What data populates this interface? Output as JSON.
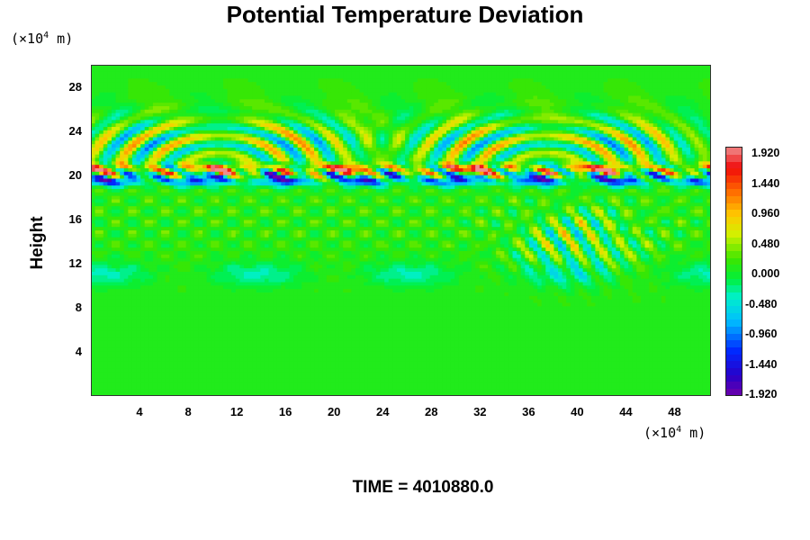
{
  "chart_data": {
    "type": "heatmap",
    "title": "Potential Temperature Deviation",
    "ylabel": "Height",
    "xunit_prefix": "(×10",
    "xunit_exp": "4",
    "xunit_suffix": " m)",
    "yunit_prefix": "(×10",
    "yunit_exp": "4",
    "yunit_suffix": " m)",
    "xlim": [
      0,
      51
    ],
    "ylim": [
      0,
      30
    ],
    "x_ticks": [
      "4",
      "8",
      "12",
      "16",
      "20",
      "24",
      "28",
      "32",
      "36",
      "40",
      "44",
      "48"
    ],
    "y_ticks": [
      "4",
      "8",
      "12",
      "16",
      "20",
      "24",
      "28"
    ],
    "colorbar_ticks": [
      "1.920",
      "1.440",
      "0.960",
      "0.480",
      "0.000",
      "-0.480",
      "-0.960",
      "-1.440",
      "-1.920"
    ],
    "colorbar_range": [
      -2.16,
      2.16
    ],
    "colorbar_levels": 36,
    "background_value": 0.1,
    "features": [
      {
        "name": "disturbance_layer",
        "x_range": [
          0,
          51
        ],
        "y_center": 20.2,
        "amplitude": 2.0
      },
      {
        "name": "gravity_wave_arcs_left",
        "x_range": [
          1,
          20
        ],
        "y_range": [
          20,
          26
        ],
        "amplitude": 1.2
      },
      {
        "name": "gravity_wave_arcs_right",
        "x_range": [
          25,
          43
        ],
        "y_range": [
          20,
          26
        ],
        "amplitude": 1.2
      },
      {
        "name": "weak_lower_layer",
        "x_range": [
          0,
          51
        ],
        "y_center": 11,
        "amplitude": -0.5
      }
    ]
  },
  "footer": {
    "time_label": "TIME = 4010880.0"
  }
}
